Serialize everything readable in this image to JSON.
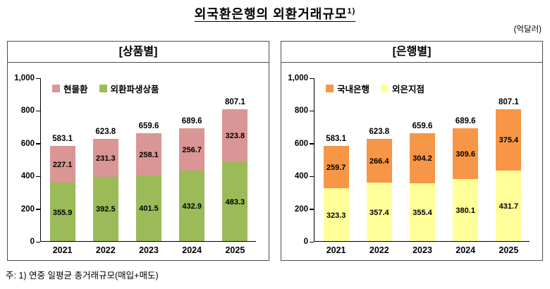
{
  "title": "외국환은행의 외환거래규모",
  "title_superscript": "1)",
  "unit_label": "(억달러)",
  "footnote": "주: 1) 연중 일평균 총거래규모(매입+매도)",
  "chart_data": [
    {
      "type": "bar",
      "stacked": true,
      "panel_title": "[상품별]",
      "categories": [
        "2021",
        "2022",
        "2023",
        "2024",
        "2025"
      ],
      "series": [
        {
          "name": "현물환",
          "position": "top",
          "color": "#d99694",
          "values": [
            227.1,
            231.3,
            258.1,
            256.7,
            323.8
          ]
        },
        {
          "name": "외환파생상품",
          "position": "bottom",
          "color": "#9bbb59",
          "values": [
            355.9,
            392.5,
            401.5,
            432.9,
            483.3
          ]
        }
      ],
      "totals": [
        583.1,
        623.8,
        659.6,
        689.6,
        807.1
      ],
      "ylim": [
        0,
        1000
      ],
      "ytick_values": [
        0,
        200,
        400,
        600,
        800,
        1000
      ],
      "ytick_labels": [
        "0",
        "200",
        "400",
        "600",
        "800",
        "1,000"
      ],
      "legend_position": "top-left-inside",
      "grid": false
    },
    {
      "type": "bar",
      "stacked": true,
      "panel_title": "[은행별]",
      "categories": [
        "2021",
        "2022",
        "2023",
        "2024",
        "2025"
      ],
      "series": [
        {
          "name": "국내은행",
          "position": "top",
          "color": "#f79646",
          "values": [
            259.7,
            266.4,
            304.2,
            309.6,
            375.4
          ]
        },
        {
          "name": "외은지점",
          "position": "bottom",
          "color": "#ffff99",
          "values": [
            323.3,
            357.4,
            355.4,
            380.1,
            431.7
          ]
        }
      ],
      "totals": [
        583.1,
        623.8,
        659.6,
        689.6,
        807.1
      ],
      "ylim": [
        0,
        1000
      ],
      "ytick_values": [
        0,
        200,
        400,
        600,
        800,
        1000
      ],
      "ytick_labels": [
        "0",
        "200",
        "400",
        "600",
        "800",
        "1,000"
      ],
      "legend_position": "top-left-inside",
      "grid": false
    }
  ]
}
